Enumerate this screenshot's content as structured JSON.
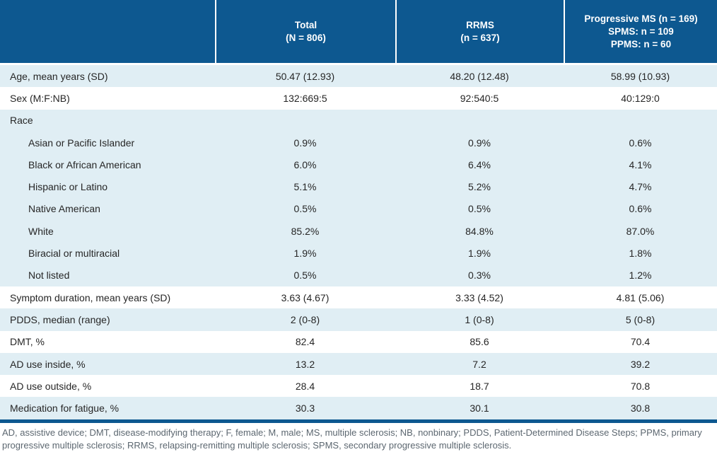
{
  "colors": {
    "header_blue": "#0d5890",
    "stripe_blue": "#e0eef4",
    "header_text": "#ffffff",
    "body_text": "#262626",
    "footnote_text": "#5c6770"
  },
  "table": {
    "header": {
      "total": {
        "line1": "Total",
        "line2": "(N = 806)"
      },
      "rrms": {
        "line1": "RRMS",
        "line2": "(n = 637)"
      },
      "progressive": {
        "line1": "Progressive MS (n = 169)",
        "line2": "SPMS: n = 109",
        "line3": "PPMS: n = 60"
      }
    },
    "rows": [
      {
        "label": "Age, mean years (SD)",
        "total": "50.47 (12.93)",
        "rrms": "48.20 (12.48)",
        "progressive": "58.99 (10.93)"
      },
      {
        "label": "Sex (M:F:NB)",
        "total": "132:669:5",
        "rrms": "92:540:5",
        "progressive": "40:129:0"
      },
      {
        "label": "Race",
        "total": "",
        "rrms": "",
        "progressive": ""
      },
      {
        "label": "Asian or Pacific Islander",
        "total": "0.9%",
        "rrms": "0.9%",
        "progressive": "0.6%"
      },
      {
        "label": "Black or African American",
        "total": "6.0%",
        "rrms": "6.4%",
        "progressive": "4.1%"
      },
      {
        "label": "Hispanic or Latino",
        "total": "5.1%",
        "rrms": "5.2%",
        "progressive": "4.7%"
      },
      {
        "label": "Native American",
        "total": "0.5%",
        "rrms": "0.5%",
        "progressive": "0.6%"
      },
      {
        "label": "White",
        "total": "85.2%",
        "rrms": "84.8%",
        "progressive": "87.0%"
      },
      {
        "label": "Biracial or multiracial",
        "total": "1.9%",
        "rrms": "1.9%",
        "progressive": "1.8%"
      },
      {
        "label": "Not listed",
        "total": "0.5%",
        "rrms": "0.3%",
        "progressive": "1.2%"
      },
      {
        "label": "Symptom duration, mean years (SD)",
        "total": "3.63 (4.67)",
        "rrms": "3.33 (4.52)",
        "progressive": "4.81 (5.06)"
      },
      {
        "label": "PDDS, median (range)",
        "total": "2 (0-8)",
        "rrms": "1 (0-8)",
        "progressive": "5 (0-8)"
      },
      {
        "label": "DMT, %",
        "total": "82.4",
        "rrms": "85.6",
        "progressive": "70.4"
      },
      {
        "label": "AD use inside, %",
        "total": "13.2",
        "rrms": "7.2",
        "progressive": "39.2"
      },
      {
        "label": "AD use outside, %",
        "total": "28.4",
        "rrms": "18.7",
        "progressive": "70.8"
      },
      {
        "label": "Medication for fatigue, %",
        "total": "30.3",
        "rrms": "30.1",
        "progressive": "30.8"
      }
    ],
    "footnote": "AD, assistive device; DMT, disease-modifying therapy; F, female; M, male; MS, multiple sclerosis; NB, nonbinary; PDDS, Patient-Determined Disease Steps; PPMS, primary progressive multiple sclerosis; RRMS, relapsing-remitting multiple sclerosis; SPMS, secondary progressive multiple sclerosis."
  }
}
